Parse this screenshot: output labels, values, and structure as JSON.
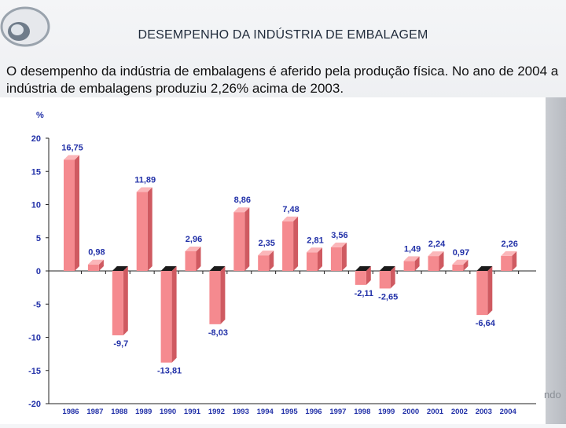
{
  "header": {
    "title": "DESEMPENHO DA INDÚSTRIA DE EMBALAGEM"
  },
  "intro": {
    "text": "O desempenho da indústria de embalagens é aferido pela produção física. No ano de 2004 a indústria de embalagens produziu 2,26% acima de 2003."
  },
  "corner": {
    "text": "ndo"
  },
  "colors": {
    "bar_front": "#f58a8f",
    "bar_side": "#cf5a61",
    "bar_top": "#fbb6b9",
    "bar_base": "#1b1b1b",
    "label": "#2231a8",
    "axis": "#222222"
  },
  "chart_data": {
    "type": "bar",
    "title": "",
    "xlabel": "",
    "ylabel": "%",
    "ylim": [
      -20,
      20
    ],
    "yticks": [
      20,
      15,
      10,
      5,
      0,
      -5,
      -10,
      -15,
      -20
    ],
    "categories": [
      "1986",
      "1987",
      "1988",
      "1989",
      "1990",
      "1991",
      "1992",
      "1993",
      "1994",
      "1995",
      "1996",
      "1997",
      "1998",
      "1999",
      "2000",
      "2001",
      "2002",
      "2003",
      "2004"
    ],
    "values": [
      16.75,
      0.98,
      -9.7,
      11.89,
      -13.81,
      2.96,
      -8.03,
      8.86,
      2.35,
      7.48,
      2.81,
      3.56,
      -2.11,
      -2.65,
      1.49,
      2.24,
      0.97,
      -6.64,
      2.26
    ],
    "labels": [
      "16,75",
      "0,98",
      "-9,7",
      "11,89",
      "-13,81",
      "2,96",
      "-8,03",
      "8,86",
      "2,35",
      "7,48",
      "2,81",
      "3,56",
      "-2,11",
      "-2,65",
      "1,49",
      "2,24",
      "0,97",
      "-6,64",
      "2,26"
    ]
  }
}
